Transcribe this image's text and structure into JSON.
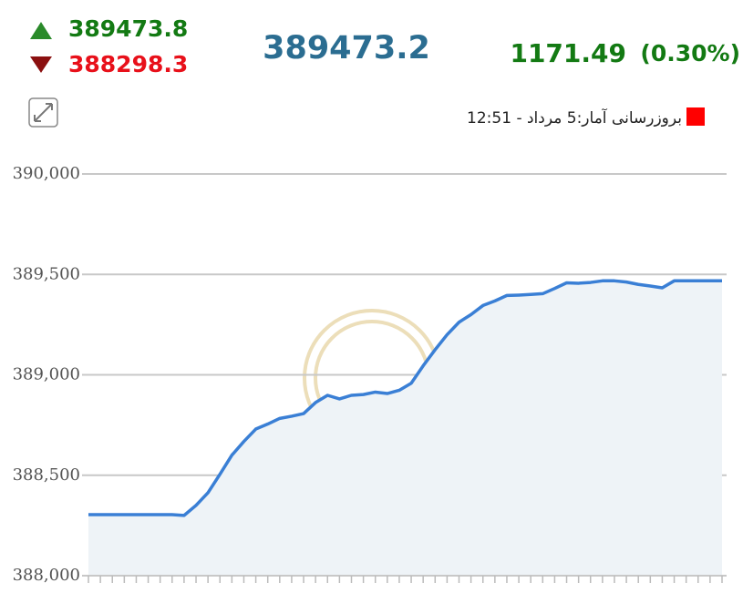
{
  "header": {
    "high": 389473.8,
    "low": 388298.3,
    "last": 389473.2,
    "change": 1171.49,
    "change_percent": {
      "value": 0.3,
      "label": "(0.30%)"
    },
    "update": "بروزرسانی آمار:5 مرداد - 12:51"
  },
  "chart_data": {
    "type": "area",
    "color": "#3a7fd5",
    "fill": "#eef3f7",
    "grid": true,
    "categories": [
      null,
      null,
      null,
      null,
      null,
      null,
      null,
      null,
      null,
      null,
      null,
      null,
      null,
      null,
      null,
      null,
      null,
      null,
      null,
      null,
      null,
      null,
      null,
      null,
      null,
      null,
      null,
      null,
      null,
      null,
      null,
      null,
      null,
      null,
      null,
      null,
      null,
      null,
      null,
      null,
      null,
      null,
      null,
      null,
      null,
      null,
      null,
      null,
      null,
      null,
      null,
      null,
      null,
      null
    ],
    "values": [
      388304,
      388304,
      388304,
      388304,
      388304,
      388304,
      388304,
      388304,
      388300,
      388350,
      388413,
      388505,
      388600,
      388668,
      388730,
      388755,
      388783,
      388794,
      388807,
      388862,
      388898,
      388880,
      388898,
      388902,
      388914,
      388907,
      388923,
      388958,
      389045,
      389125,
      389200,
      389262,
      389300,
      389345,
      389368,
      389395,
      389397,
      389400,
      389404,
      389430,
      389458,
      389456,
      389460,
      389468,
      389468,
      389462,
      389450,
      389442,
      389433,
      389468,
      389468,
      389468,
      389468,
      389468
    ],
    "ylim": [
      388000,
      390000
    ],
    "yticks": [
      {
        "value": 388000,
        "label": "388,000"
      },
      {
        "value": 388500,
        "label": "388,500"
      },
      {
        "value": 389000,
        "label": "389,000"
      },
      {
        "value": 389500,
        "label": "389,500"
      },
      {
        "value": 390000,
        "label": "390,000"
      }
    ]
  }
}
